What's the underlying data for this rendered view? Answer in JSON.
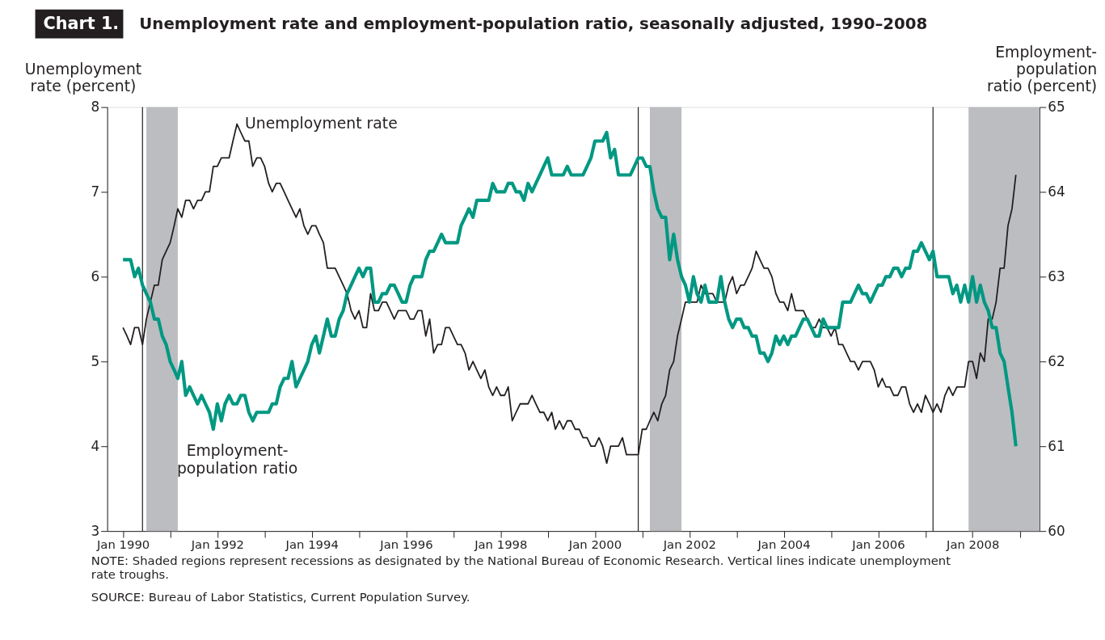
{
  "chart_data": {
    "type": "line",
    "title": "Chart 1.",
    "subtitle": "Unemployment rate and employment-population ratio, seasonally adjusted, 1990–2008",
    "ylabel": "Unemployment rate (percent)",
    "y2label": "Employment-population ratio (percent)",
    "x": [
      "1990-01",
      "1990-02",
      "1990-03",
      "1990-04",
      "1990-05",
      "1990-06",
      "1990-07",
      "1990-08",
      "1990-09",
      "1990-10",
      "1990-11",
      "1990-12",
      "1991-01",
      "1991-02",
      "1991-03",
      "1991-04",
      "1991-05",
      "1991-06",
      "1991-07",
      "1991-08",
      "1991-09",
      "1991-10",
      "1991-11",
      "1991-12",
      "1992-01",
      "1992-02",
      "1992-03",
      "1992-04",
      "1992-05",
      "1992-06",
      "1992-07",
      "1992-08",
      "1992-09",
      "1992-10",
      "1992-11",
      "1992-12",
      "1993-01",
      "1993-02",
      "1993-03",
      "1993-04",
      "1993-05",
      "1993-06",
      "1993-07",
      "1993-08",
      "1993-09",
      "1993-10",
      "1993-11",
      "1993-12",
      "1994-01",
      "1994-02",
      "1994-03",
      "1994-04",
      "1994-05",
      "1994-06",
      "1994-07",
      "1994-08",
      "1994-09",
      "1994-10",
      "1994-11",
      "1994-12",
      "1995-01",
      "1995-02",
      "1995-03",
      "1995-04",
      "1995-05",
      "1995-06",
      "1995-07",
      "1995-08",
      "1995-09",
      "1995-10",
      "1995-11",
      "1995-12",
      "1996-01",
      "1996-02",
      "1996-03",
      "1996-04",
      "1996-05",
      "1996-06",
      "1996-07",
      "1996-08",
      "1996-09",
      "1996-10",
      "1996-11",
      "1996-12",
      "1997-01",
      "1997-02",
      "1997-03",
      "1997-04",
      "1997-05",
      "1997-06",
      "1997-07",
      "1997-08",
      "1997-09",
      "1997-10",
      "1997-11",
      "1997-12",
      "1998-01",
      "1998-02",
      "1998-03",
      "1998-04",
      "1998-05",
      "1998-06",
      "1998-07",
      "1998-08",
      "1998-09",
      "1998-10",
      "1998-11",
      "1998-12",
      "1999-01",
      "1999-02",
      "1999-03",
      "1999-04",
      "1999-05",
      "1999-06",
      "1999-07",
      "1999-08",
      "1999-09",
      "1999-10",
      "1999-11",
      "1999-12",
      "2000-01",
      "2000-02",
      "2000-03",
      "2000-04",
      "2000-05",
      "2000-06",
      "2000-07",
      "2000-08",
      "2000-09",
      "2000-10",
      "2000-11",
      "2000-12",
      "2001-01",
      "2001-02",
      "2001-03",
      "2001-04",
      "2001-05",
      "2001-06",
      "2001-07",
      "2001-08",
      "2001-09",
      "2001-10",
      "2001-11",
      "2001-12",
      "2002-01",
      "2002-02",
      "2002-03",
      "2002-04",
      "2002-05",
      "2002-06",
      "2002-07",
      "2002-08",
      "2002-09",
      "2002-10",
      "2002-11",
      "2002-12",
      "2003-01",
      "2003-02",
      "2003-03",
      "2003-04",
      "2003-05",
      "2003-06",
      "2003-07",
      "2003-08",
      "2003-09",
      "2003-10",
      "2003-11",
      "2003-12",
      "2004-01",
      "2004-02",
      "2004-03",
      "2004-04",
      "2004-05",
      "2004-06",
      "2004-07",
      "2004-08",
      "2004-09",
      "2004-10",
      "2004-11",
      "2004-12",
      "2005-01",
      "2005-02",
      "2005-03",
      "2005-04",
      "2005-05",
      "2005-06",
      "2005-07",
      "2005-08",
      "2005-09",
      "2005-10",
      "2005-11",
      "2005-12",
      "2006-01",
      "2006-02",
      "2006-03",
      "2006-04",
      "2006-05",
      "2006-06",
      "2006-07",
      "2006-08",
      "2006-09",
      "2006-10",
      "2006-11",
      "2006-12",
      "2007-01",
      "2007-02",
      "2007-03",
      "2007-04",
      "2007-05",
      "2007-06",
      "2007-07",
      "2007-08",
      "2007-09",
      "2007-10",
      "2007-11",
      "2007-12",
      "2008-01",
      "2008-02",
      "2008-03",
      "2008-04",
      "2008-05",
      "2008-06",
      "2008-07",
      "2008-08",
      "2008-09",
      "2008-10",
      "2008-11",
      "2008-12"
    ],
    "series": [
      {
        "name": "Unemployment rate",
        "color": "#231f20",
        "values": [
          5.4,
          5.3,
          5.2,
          5.4,
          5.4,
          5.2,
          5.5,
          5.7,
          5.9,
          5.9,
          6.2,
          6.3,
          6.4,
          6.6,
          6.8,
          6.7,
          6.9,
          6.9,
          6.8,
          6.9,
          6.9,
          7.0,
          7.0,
          7.3,
          7.3,
          7.4,
          7.4,
          7.4,
          7.6,
          7.8,
          7.7,
          7.6,
          7.6,
          7.3,
          7.4,
          7.4,
          7.3,
          7.1,
          7.0,
          7.1,
          7.1,
          7.0,
          6.9,
          6.8,
          6.7,
          6.8,
          6.6,
          6.5,
          6.6,
          6.6,
          6.5,
          6.4,
          6.1,
          6.1,
          6.1,
          6.0,
          5.9,
          5.8,
          5.6,
          5.5,
          5.6,
          5.4,
          5.4,
          5.8,
          5.6,
          5.6,
          5.7,
          5.7,
          5.6,
          5.5,
          5.6,
          5.6,
          5.6,
          5.5,
          5.5,
          5.6,
          5.6,
          5.3,
          5.5,
          5.1,
          5.2,
          5.2,
          5.4,
          5.4,
          5.3,
          5.2,
          5.2,
          5.1,
          4.9,
          5.0,
          4.9,
          4.8,
          4.9,
          4.7,
          4.6,
          4.7,
          4.6,
          4.6,
          4.7,
          4.3,
          4.4,
          4.5,
          4.5,
          4.5,
          4.6,
          4.5,
          4.4,
          4.4,
          4.3,
          4.4,
          4.2,
          4.3,
          4.2,
          4.3,
          4.3,
          4.2,
          4.2,
          4.1,
          4.1,
          4.0,
          4.0,
          4.1,
          4.0,
          3.8,
          4.0,
          4.0,
          4.0,
          4.1,
          3.9,
          3.9,
          3.9,
          3.9,
          4.2,
          4.2,
          4.3,
          4.4,
          4.3,
          4.5,
          4.6,
          4.9,
          5.0,
          5.3,
          5.5,
          5.7,
          5.7,
          5.7,
          5.7,
          5.9,
          5.8,
          5.8,
          5.8,
          5.7,
          5.7,
          5.7,
          5.9,
          6.0,
          5.8,
          5.9,
          5.9,
          6.0,
          6.1,
          6.3,
          6.2,
          6.1,
          6.1,
          6.0,
          5.8,
          5.7,
          5.7,
          5.6,
          5.8,
          5.6,
          5.6,
          5.6,
          5.5,
          5.4,
          5.4,
          5.5,
          5.4,
          5.4,
          5.3,
          5.4,
          5.2,
          5.2,
          5.1,
          5.0,
          5.0,
          4.9,
          5.0,
          5.0,
          5.0,
          4.9,
          4.7,
          4.8,
          4.7,
          4.7,
          4.6,
          4.6,
          4.7,
          4.7,
          4.5,
          4.4,
          4.5,
          4.4,
          4.6,
          4.5,
          4.4,
          4.5,
          4.4,
          4.6,
          4.7,
          4.6,
          4.7,
          4.7,
          4.7,
          5.0,
          5.0,
          4.8,
          5.1,
          5.0,
          5.5,
          5.5,
          5.7,
          6.1,
          6.1,
          6.6,
          6.8,
          7.2
        ]
      },
      {
        "name": "Employment-population ratio",
        "color": "#009882",
        "axis": "y2",
        "values": [
          63.2,
          63.2,
          63.2,
          63.0,
          63.1,
          62.9,
          62.8,
          62.7,
          62.5,
          62.5,
          62.3,
          62.2,
          62.0,
          61.9,
          61.8,
          62.0,
          61.6,
          61.7,
          61.6,
          61.5,
          61.6,
          61.5,
          61.4,
          61.2,
          61.5,
          61.3,
          61.5,
          61.6,
          61.5,
          61.5,
          61.6,
          61.6,
          61.4,
          61.3,
          61.4,
          61.4,
          61.4,
          61.4,
          61.5,
          61.5,
          61.7,
          61.8,
          61.8,
          62.0,
          61.7,
          61.8,
          61.9,
          62.0,
          62.2,
          62.3,
          62.1,
          62.3,
          62.5,
          62.3,
          62.3,
          62.5,
          62.6,
          62.8,
          62.9,
          63.0,
          63.1,
          63.0,
          63.1,
          63.1,
          62.7,
          62.7,
          62.8,
          62.8,
          62.9,
          62.9,
          62.8,
          62.7,
          62.7,
          62.9,
          63.0,
          63.0,
          63.0,
          63.2,
          63.3,
          63.3,
          63.4,
          63.5,
          63.4,
          63.4,
          63.4,
          63.4,
          63.6,
          63.7,
          63.8,
          63.7,
          63.9,
          63.9,
          63.9,
          63.9,
          64.1,
          64.0,
          64.0,
          64.0,
          64.1,
          64.1,
          64.0,
          64.0,
          63.9,
          64.1,
          64.0,
          64.1,
          64.2,
          64.3,
          64.4,
          64.2,
          64.2,
          64.2,
          64.2,
          64.3,
          64.2,
          64.2,
          64.2,
          64.2,
          64.3,
          64.4,
          64.6,
          64.6,
          64.6,
          64.7,
          64.4,
          64.5,
          64.2,
          64.2,
          64.2,
          64.2,
          64.3,
          64.4,
          64.4,
          64.3,
          64.3,
          64.0,
          63.8,
          63.7,
          63.7,
          63.2,
          63.5,
          63.2,
          63.0,
          62.9,
          62.7,
          63.0,
          62.8,
          62.7,
          62.9,
          62.7,
          62.7,
          62.7,
          63.0,
          62.7,
          62.5,
          62.4,
          62.5,
          62.5,
          62.4,
          62.4,
          62.3,
          62.3,
          62.1,
          62.1,
          62.0,
          62.1,
          62.3,
          62.2,
          62.3,
          62.2,
          62.3,
          62.3,
          62.4,
          62.5,
          62.5,
          62.4,
          62.3,
          62.3,
          62.5,
          62.4,
          62.4,
          62.4,
          62.4,
          62.7,
          62.7,
          62.7,
          62.8,
          62.9,
          62.8,
          62.8,
          62.7,
          62.8,
          62.9,
          62.9,
          63.0,
          63.0,
          63.1,
          63.1,
          63.0,
          63.1,
          63.1,
          63.3,
          63.3,
          63.4,
          63.3,
          63.2,
          63.3,
          63.0,
          63.0,
          63.0,
          63.0,
          62.8,
          62.9,
          62.7,
          62.9,
          62.7,
          63.0,
          62.7,
          62.9,
          62.7,
          62.6,
          62.4,
          62.4,
          62.1,
          62.0,
          61.7,
          61.4,
          61.0
        ]
      }
    ],
    "xlim": [
      "1989-09",
      "2009-06"
    ],
    "xticks": [
      {
        "value": "1990-01",
        "label": "Jan 1990"
      },
      {
        "value": "1991-01",
        "label": null
      },
      {
        "value": "1992-01",
        "label": "Jan 1992"
      },
      {
        "value": "1993-01",
        "label": null
      },
      {
        "value": "1994-01",
        "label": "Jan 1994"
      },
      {
        "value": "1995-01",
        "label": null
      },
      {
        "value": "1996-01",
        "label": "Jan 1996"
      },
      {
        "value": "1997-01",
        "label": null
      },
      {
        "value": "1998-01",
        "label": "Jan 1998"
      },
      {
        "value": "1999-01",
        "label": null
      },
      {
        "value": "2000-01",
        "label": "Jan 2000"
      },
      {
        "value": "2001-01",
        "label": null
      },
      {
        "value": "2002-01",
        "label": "Jan 2002"
      },
      {
        "value": "2003-01",
        "label": null
      },
      {
        "value": "2004-01",
        "label": "Jan 2004"
      },
      {
        "value": "2005-01",
        "label": null
      },
      {
        "value": "2006-01",
        "label": "Jan 2006"
      },
      {
        "value": "2007-01",
        "label": null
      },
      {
        "value": "2008-01",
        "label": "Jan 2008"
      },
      {
        "value": "2009-01",
        "label": null
      }
    ],
    "ylim": [
      3,
      8
    ],
    "yticks": [
      3,
      4,
      5,
      6,
      7,
      8
    ],
    "y2lim": [
      60,
      65
    ],
    "y2ticks": [
      60,
      61,
      62,
      63,
      64,
      65
    ],
    "bands": [
      {
        "axis": "x",
        "from": "1990-07",
        "to": "1991-03",
        "color": "#bcbdc1"
      },
      {
        "axis": "x",
        "from": "2001-03",
        "to": "2001-11",
        "color": "#bcbdc1"
      },
      {
        "axis": "x",
        "from": "2007-12",
        "to": "2009-06",
        "color": "#bcbdc1"
      }
    ],
    "ref_lines": [
      {
        "axis": "x",
        "value": "1990-06",
        "color": "#231f20"
      },
      {
        "axis": "x",
        "value": "2000-12",
        "color": "#231f20"
      },
      {
        "axis": "x",
        "value": "2007-03",
        "color": "#231f20"
      }
    ],
    "annotations": [
      "NOTE:  Shaded regions represent recessions as designated by the National Bureau of Economic Research.  Vertical lines indicate unemployment rate troughs.",
      "SOURCE:  Bureau of Labor Statistics, Current Population Survey."
    ],
    "grid": false,
    "legend": false,
    "marker": "none",
    "line_style": "solid"
  }
}
